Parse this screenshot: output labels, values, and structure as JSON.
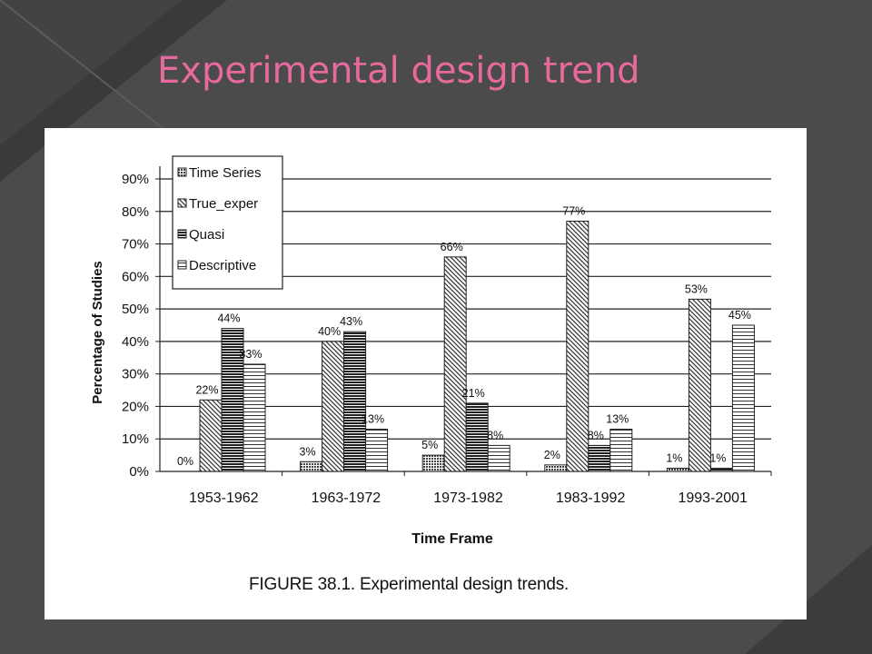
{
  "slide": {
    "title": "Experimental design trend",
    "title_color": "#e8699c",
    "background": "#4b4b4b"
  },
  "figure": {
    "caption": "FIGURE 38.1.  Experimental design trends."
  },
  "chart_data": {
    "type": "bar",
    "categories": [
      "1953-1962",
      "1963-1972",
      "1973-1982",
      "1983-1992",
      "1993-2001"
    ],
    "series": [
      {
        "name": "Time Series",
        "pattern": "dots",
        "values": [
          0,
          3,
          5,
          2,
          1
        ]
      },
      {
        "name": "True_exper",
        "pattern": "diagonal",
        "values": [
          22,
          40,
          66,
          77,
          53
        ]
      },
      {
        "name": "Quasi",
        "pattern": "dense-horizontal",
        "values": [
          44,
          43,
          21,
          8,
          1
        ]
      },
      {
        "name": "Descriptive",
        "pattern": "horizontal",
        "values": [
          33,
          13,
          8,
          13,
          45
        ]
      }
    ],
    "data_labels": [
      [
        "0%",
        "22%",
        "44%",
        "33%"
      ],
      [
        "3%",
        "40%",
        "43%",
        "13%"
      ],
      [
        "5%",
        "66%",
        "21%",
        "8%"
      ],
      [
        "2%",
        "77%",
        "8%",
        "13%"
      ],
      [
        "1%",
        "53%",
        "1%",
        "45%"
      ]
    ],
    "ylabel": "Percentage of Studies",
    "xlabel": "Time Frame",
    "ylim": [
      0,
      90
    ],
    "yticks": [
      0,
      10,
      20,
      30,
      40,
      50,
      60,
      70,
      80,
      90
    ],
    "ytick_labels": [
      "0%",
      "10%",
      "20%",
      "30%",
      "40%",
      "50%",
      "60%",
      "70%",
      "80%",
      "90%"
    ],
    "grid": true,
    "legend_position": "top-left"
  }
}
